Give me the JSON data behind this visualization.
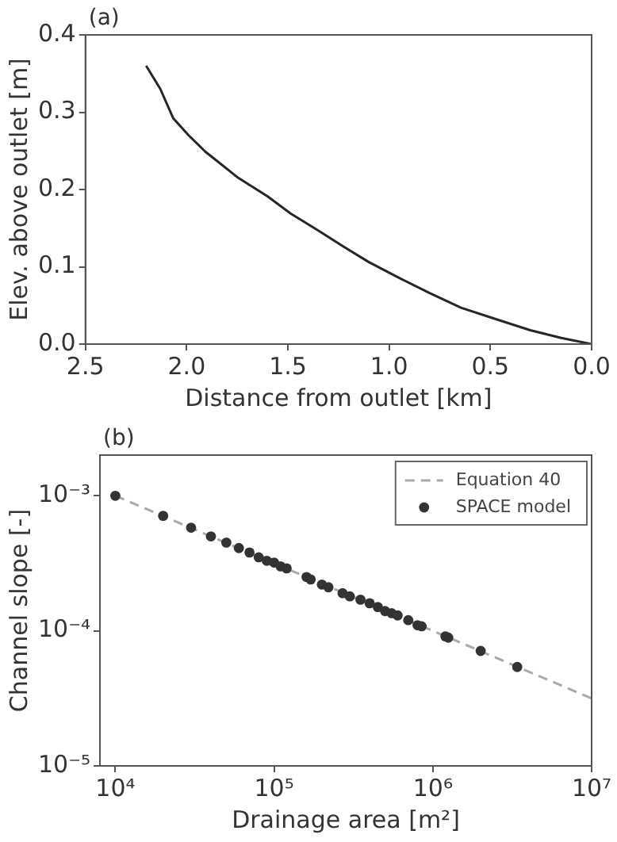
{
  "chart_data": [
    {
      "type": "line",
      "title": "(a)",
      "xlabel": "Distance from outlet [km]",
      "ylabel": "Elev. above outlet [m]",
      "color": "#262626",
      "x": [
        2.2,
        2.13,
        2.066,
        1.99,
        1.908,
        1.75,
        1.6,
        1.487,
        1.35,
        1.224,
        1.1,
        0.961,
        0.8,
        0.645,
        0.47,
        0.303,
        0.15,
        0
      ],
      "values": [
        0.36,
        0.33,
        0.292,
        0.27,
        0.249,
        0.216,
        0.191,
        0.169,
        0.147,
        0.126,
        0.106,
        0.087,
        0.066,
        0.047,
        0.032,
        0.018,
        0.008,
        0
      ],
      "xlim": [
        2.5,
        0
      ],
      "ylim": [
        0,
        0.4
      ],
      "xticks": [
        {
          "value": 2.5,
          "label": "2.5"
        },
        {
          "value": 2,
          "label": "2.0"
        },
        {
          "value": 1.5,
          "label": "1.5"
        },
        {
          "value": 1,
          "label": "1.0"
        },
        {
          "value": 0.5,
          "label": "0.5"
        },
        {
          "value": 0,
          "label": "0.0"
        }
      ],
      "yticks": [
        {
          "value": 0,
          "label": "0.0"
        },
        {
          "value": 0.1,
          "label": "0.1"
        },
        {
          "value": 0.2,
          "label": "0.2"
        },
        {
          "value": 0.3,
          "label": "0.3"
        },
        {
          "value": 0.4,
          "label": "0.4"
        }
      ],
      "grid": false,
      "line_style": "solid",
      "marker": "none"
    },
    {
      "type": "scatter",
      "title": "(b)",
      "xlabel": "Drainage area [m²]",
      "ylabel": "Channel slope [-]",
      "log": "xy",
      "legend": "top right",
      "grid": false,
      "xlim": [
        8000,
        10000000
      ],
      "ylim": [
        1e-05,
        0.002
      ],
      "xticks": [
        {
          "value": 10000,
          "label": "10⁴"
        },
        {
          "value": 100000,
          "label": "10⁵"
        },
        {
          "value": 1000000,
          "label": "10⁶"
        },
        {
          "value": 10000000,
          "label": "10⁷"
        }
      ],
      "yticks": [
        {
          "value": 1e-05,
          "label": "10⁻⁵"
        },
        {
          "value": 0.0001,
          "label": "10⁻⁴"
        },
        {
          "value": 0.001,
          "label": "10⁻³"
        }
      ],
      "series": [
        {
          "name": "Equation 40",
          "type": "line",
          "line_style": "dashed",
          "marker": "none",
          "color": "#aaaaaa",
          "x": [
            10000,
            10000000
          ],
          "values": [
            0.001,
            3.16e-05
          ]
        },
        {
          "name": "SPACE model",
          "type": "scatter",
          "marker": "circle",
          "color": "#333333",
          "x": [
            10000,
            20000,
            30000,
            40000,
            50000,
            60000,
            70000,
            80000,
            90000,
            100000,
            110000,
            120000,
            160000,
            170000,
            200000,
            220000,
            270000,
            300000,
            350000,
            400000,
            450000,
            500000,
            550000,
            600000,
            700000,
            800000,
            850000,
            1200000,
            1250000,
            2000000,
            3400000
          ],
          "values": [
            0.001,
            0.00071,
            0.00058,
            0.0005,
            0.00045,
            0.00041,
            0.00038,
            0.00035,
            0.00033,
            0.00032,
            0.0003,
            0.00029,
            0.00025,
            0.00024,
            0.00022,
            0.00021,
            0.00019,
            0.00018,
            0.00017,
            0.00016,
            0.00015,
            0.00014,
            0.000135,
            0.00013,
            0.00012,
            0.00011,
            0.000108,
            9.1e-05,
            8.9e-05,
            7.1e-05,
            5.4e-05
          ]
        }
      ]
    }
  ]
}
